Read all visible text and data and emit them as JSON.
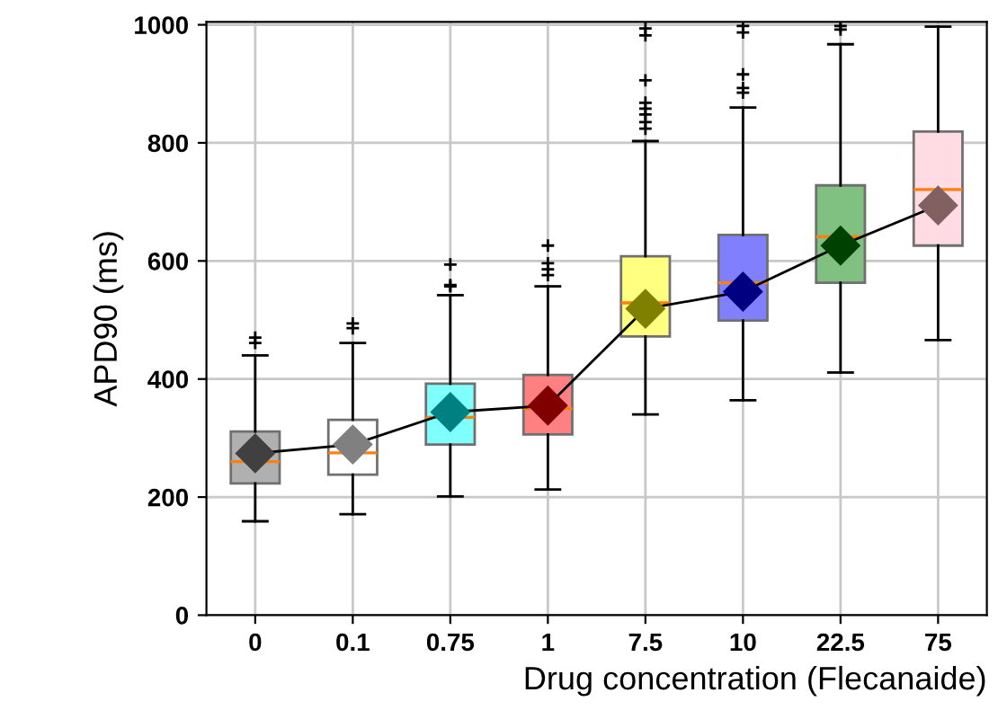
{
  "chart_data": {
    "type": "box",
    "xlabel": "Drug concentration (Flecanaide)",
    "ylabel": "APD90 (ms)",
    "categories": [
      "0",
      "0.1",
      "0.75",
      "1",
      "7.5",
      "10",
      "22.5",
      "75"
    ],
    "ylim": [
      0,
      1005
    ],
    "yticks": [
      0,
      200,
      400,
      600,
      800,
      1000
    ],
    "grid": true,
    "series": [
      {
        "colors": [
          "#b0b0b0",
          "#ffffff",
          "#80ffff",
          "#ff8080",
          "#ffff80",
          "#8080ff",
          "#80c080",
          "#ffdce3"
        ],
        "boxes": [
          {
            "low": 159,
            "q1": 223,
            "median": 260,
            "q3": 311,
            "high": 440,
            "outliers": [
              461,
              470
            ]
          },
          {
            "low": 171,
            "q1": 238,
            "median": 275,
            "q3": 331,
            "high": 461,
            "outliers": [
              486,
              494
            ]
          },
          {
            "low": 201,
            "q1": 289,
            "median": 335,
            "q3": 392,
            "high": 542,
            "outliers": [
              557,
              559,
              594
            ]
          },
          {
            "low": 213,
            "q1": 306,
            "median": 350,
            "q3": 407,
            "high": 557,
            "outliers": [
              576,
              586,
              596,
              626
            ]
          },
          {
            "low": 340,
            "q1": 472,
            "median": 529,
            "q3": 608,
            "high": 803,
            "outliers": [
              824,
              835,
              848,
              858,
              868,
              906,
              982,
              994
            ]
          },
          {
            "low": 364,
            "q1": 499,
            "median": 563,
            "q3": 644,
            "high": 860,
            "outliers": [
              885,
              893,
              916,
              987,
              998
            ]
          },
          {
            "low": 411,
            "q1": 563,
            "median": 641,
            "q3": 728,
            "high": 967,
            "outliers": [
              992,
              998
            ]
          },
          {
            "low": 466,
            "q1": 626,
            "median": 721,
            "q3": 819,
            "high": 997
          }
        ]
      },
      {
        "type": "line",
        "color": "#000000",
        "marker": "diamond",
        "values": [
          274,
          289,
          344,
          355,
          519,
          548,
          626,
          694
        ],
        "colors": [
          "#404040",
          "#808080",
          "#008080",
          "#800000",
          "#808000",
          "#000080",
          "#004000",
          "#806060"
        ]
      }
    ]
  }
}
